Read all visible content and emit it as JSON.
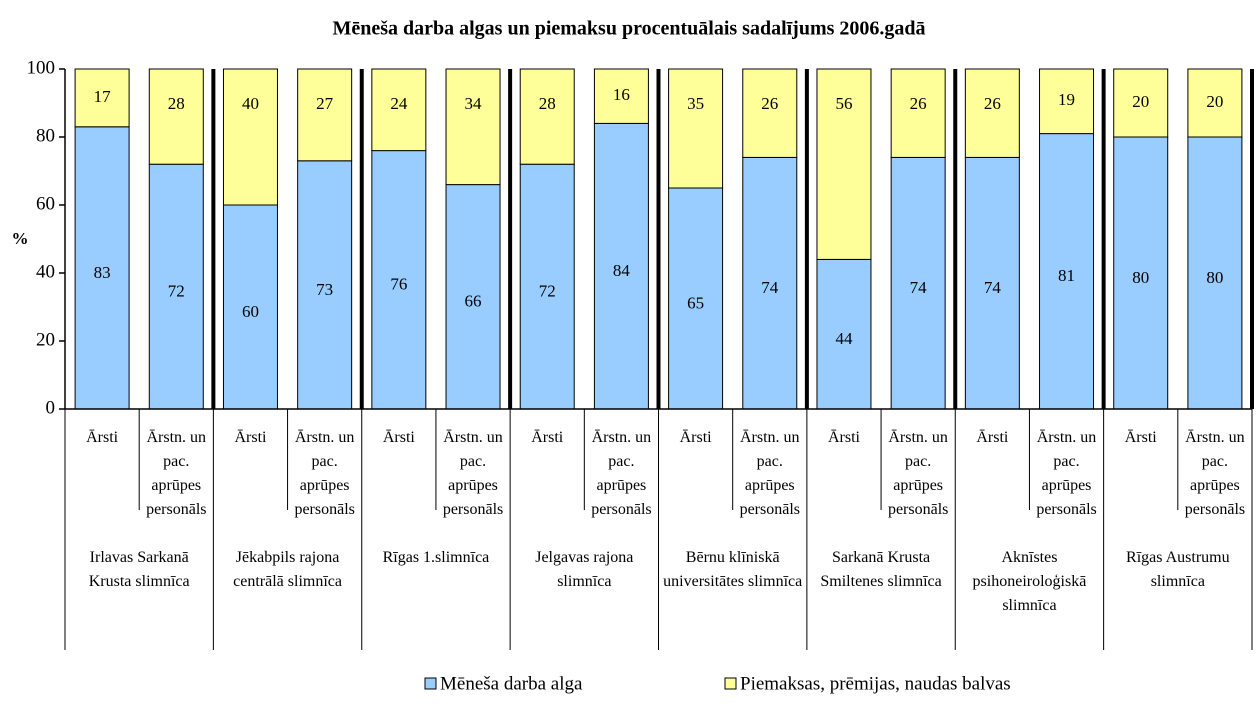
{
  "chart_data": {
    "type": "stacked_bar",
    "title": "Mēneša darba algas un piemaksu procentuālais sadalījums 2006.gadā",
    "ylabel": "%",
    "categories": [
      "Ārsti",
      "Ārstn. un pac. aprūpes personāls",
      "Ārsti",
      "Ārstn. un pac. aprūpes personāls",
      "Ārsti",
      "Ārstn. un pac. aprūpes personāls",
      "Ārsti",
      "Ārstn. un pac. aprūpes personāls",
      "Ārsti",
      "Ārstn. un pac. aprūpes personāls",
      "Ārsti",
      "Ārstn. un pac. aprūpes personāls",
      "Ārsti",
      "Ārstn. un pac. aprūpes personāls",
      "Ārsti",
      "Ārstn. un pac. aprūpes personāls"
    ],
    "groups": [
      "Irlavas Sarkanā Krusta slimnīca",
      "Jēkabpils rajona centrālā slimnīca",
      "Rīgas 1.slimnīca",
      "Jelgavas rajona slimnīca",
      "Bērnu klīniskā universitātes slimnīca",
      "Sarkanā Krusta Smiltenes slimnīca",
      "Aknīstes psihoneiroloģiskā slimnīca",
      "Rīgas Austrumu slimnīca"
    ],
    "series": [
      {
        "name": "Mēneša darba alga",
        "color": "#99ccff",
        "values": [
          83,
          72,
          60,
          73,
          76,
          66,
          72,
          84,
          65,
          74,
          44,
          74,
          74,
          81,
          80,
          80
        ]
      },
      {
        "name": "Piemaksas, prēmijas, naudas balvas",
        "color": "#ffff99",
        "values": [
          17,
          28,
          40,
          27,
          24,
          34,
          28,
          16,
          35,
          26,
          56,
          26,
          26,
          19,
          20,
          20
        ]
      }
    ],
    "ylim": [
      0,
      100
    ],
    "yticks": [
      0,
      20,
      40,
      60,
      80,
      100
    ],
    "legend": "bottom"
  }
}
